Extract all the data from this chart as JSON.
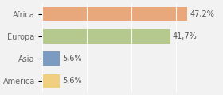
{
  "categories": [
    "Africa",
    "Europa",
    "Asia",
    "America"
  ],
  "values": [
    47.2,
    41.7,
    5.6,
    5.6
  ],
  "labels": [
    "47,2%",
    "41,7%",
    "5,6%",
    "5,6%"
  ],
  "bar_colors": [
    "#e8a87c",
    "#b5c98e",
    "#7b9cc0",
    "#f0d080"
  ],
  "background_color": "#f2f2f2",
  "xlim": [
    0,
    58
  ],
  "bar_height": 0.62,
  "label_fontsize": 7.0,
  "tick_fontsize": 7.0
}
